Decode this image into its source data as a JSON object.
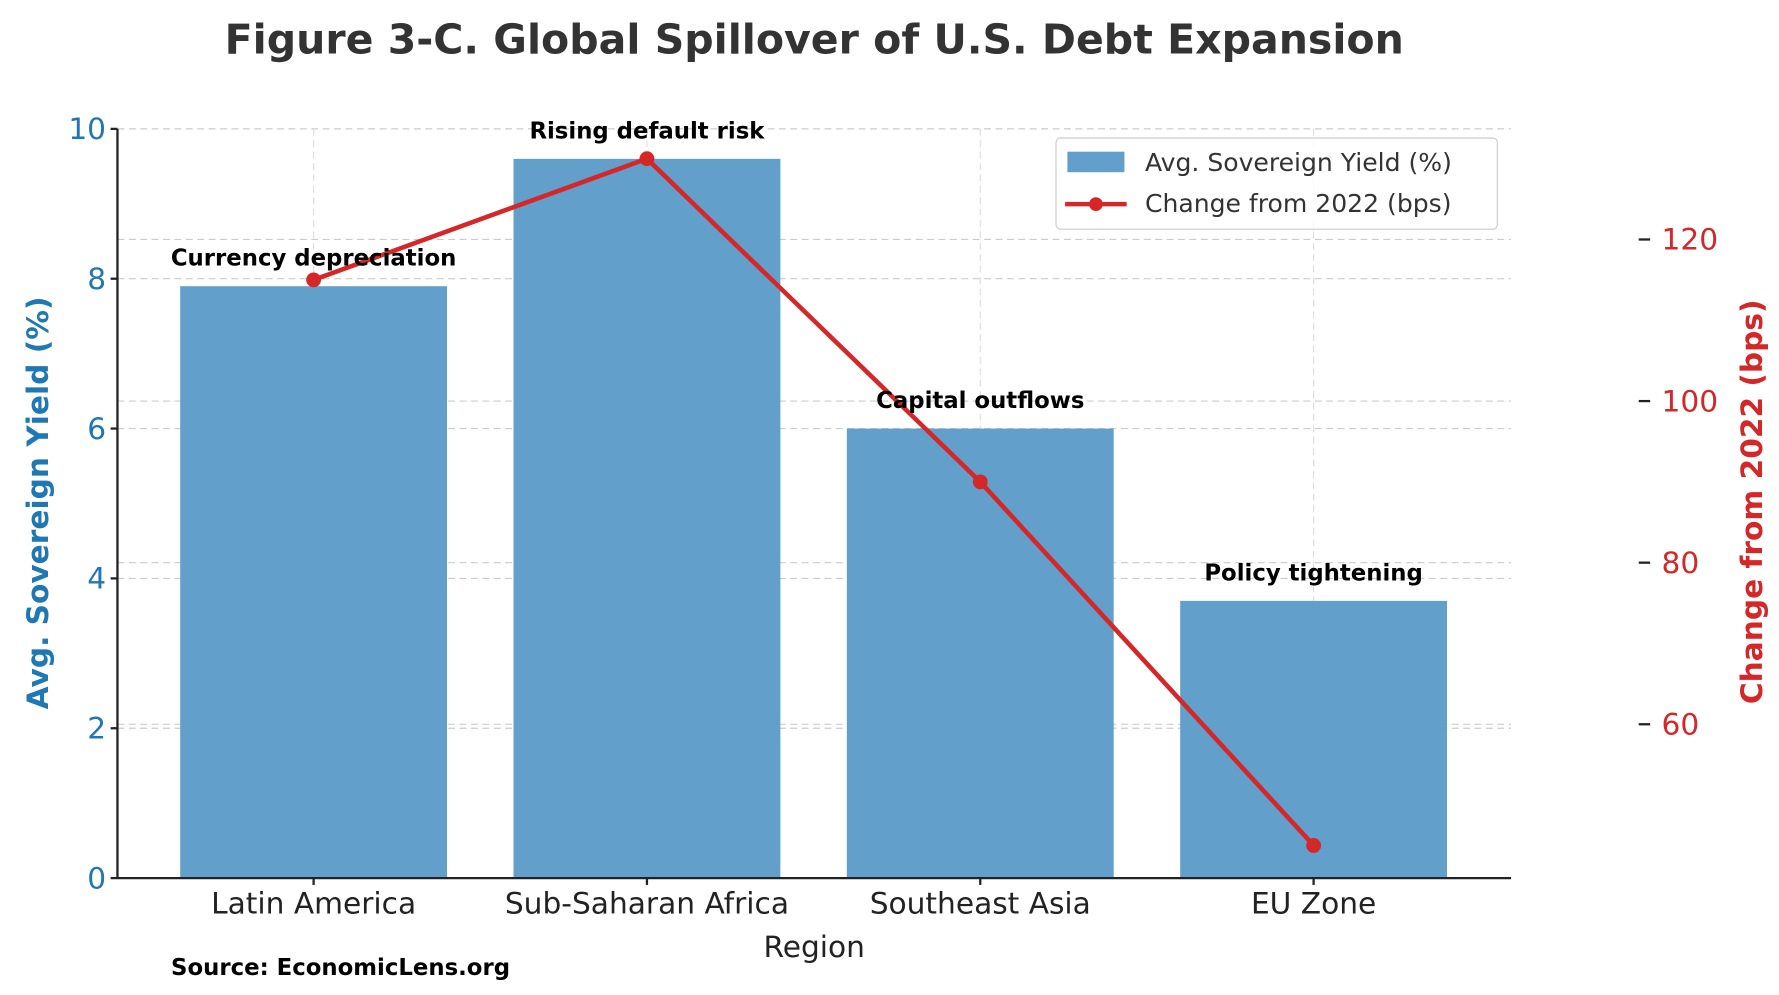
{
  "chart_data": {
    "type": "bar+line",
    "title": "Figure 3-C. Global Spillover of U.S. Debt Expansion",
    "xlabel": "Region",
    "ylabel": "Avg. Sovereign Yield (%)",
    "y2label": "Change from 2022 (bps)",
    "categories": [
      "Latin America",
      "Sub-Saharan Africa",
      "Southeast Asia",
      "EU Zone"
    ],
    "series": [
      {
        "name": "Avg. Sovereign Yield (%)",
        "type": "bar",
        "axis": "left",
        "color": "#629fca",
        "values": [
          7.9,
          9.6,
          6.0,
          3.7
        ]
      },
      {
        "name": "Change from 2022 (bps)",
        "type": "line",
        "axis": "right",
        "color": "#d62728",
        "values": [
          115,
          130,
          90,
          45
        ]
      }
    ],
    "annotations": [
      "Currency depreciation",
      "Rising default risk",
      "Capital outflows",
      "Policy tightening"
    ],
    "ylim": [
      0,
      10
    ],
    "yticks": [
      "0",
      "2",
      "4",
      "6",
      "8",
      "10"
    ],
    "y2ticks": [
      "60",
      "80",
      "100",
      "120"
    ],
    "left_axis_color": "#1f77b4",
    "right_axis_color": "#d62728",
    "grid": true,
    "legend_position": "top-right",
    "source": "Source: EconomicLens.org"
  }
}
